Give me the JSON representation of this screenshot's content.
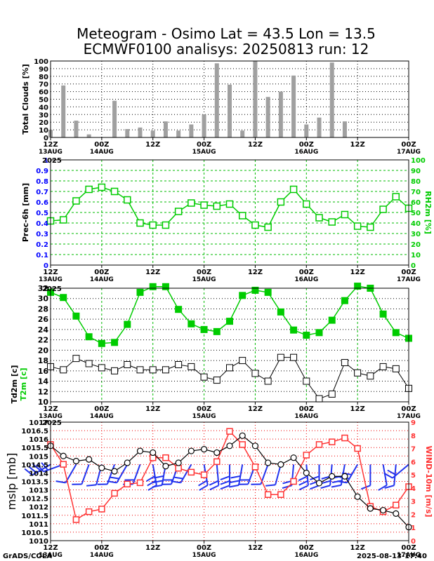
{
  "header": {
    "title_line1": "Meteogram - Osimo Lat = 43.5 Lon = 13.5",
    "title_line2": "ECMWF0100 analisys: 20250813 run: 12"
  },
  "footer": {
    "left": "GrADS/COLA",
    "right": "2025-08-13-17:40"
  },
  "colors": {
    "clouds_bar": "#a0a0a0",
    "precip_axis": "#0000ff",
    "rh": "#00cc00",
    "t2m": "#00cc00",
    "td2m": "#000000",
    "mslp": "#000000",
    "wind_speed": "#ff3333",
    "wind_barbs": "#2233ee",
    "grid_black": "#000000",
    "grid_green": "#00bb00",
    "grid_red": "#ee0000"
  },
  "time_axis": {
    "hours": [
      0,
      12,
      24,
      36,
      48,
      60,
      72,
      84
    ],
    "ticks": [
      {
        "top": "12Z",
        "bottom": "13AUG"
      },
      {
        "top": "00Z",
        "bottom": "14AUG"
      },
      {
        "top": "12Z",
        "bottom": ""
      },
      {
        "top": "00Z",
        "bottom": "15AUG"
      },
      {
        "top": "12Z",
        "bottom": ""
      },
      {
        "top": "00Z",
        "bottom": "16AUG"
      },
      {
        "top": "12Z",
        "bottom": ""
      },
      {
        "top": "00Z",
        "bottom": "17AUG"
      }
    ],
    "year_label": "2025"
  },
  "chart_data": [
    {
      "type": "bar",
      "ylabel": "Total Clouds [%]",
      "ylim": [
        0,
        100
      ],
      "yticks": [
        0,
        10,
        20,
        30,
        40,
        50,
        60,
        70,
        80,
        90,
        100
      ],
      "x_hours": [
        0,
        3,
        6,
        9,
        12,
        15,
        18,
        21,
        24,
        27,
        30,
        33,
        36,
        39,
        42,
        45,
        48,
        51,
        54,
        57,
        60,
        63,
        66,
        69
      ],
      "values": [
        10,
        68,
        22,
        4,
        0,
        48,
        11,
        13,
        9,
        21,
        9,
        17,
        30,
        97,
        69,
        9,
        100,
        53,
        60,
        81,
        17,
        26,
        98,
        21
      ]
    },
    {
      "type": "line",
      "ylabel_left": "Prec-6h [mm]",
      "ylabel_right": "RH2m [%]",
      "ylim_left": [
        0,
        1
      ],
      "yticks_left": [
        "0",
        "0.1",
        "0.2",
        "0.3",
        "0.4",
        "0.5",
        "0.6",
        "0.7",
        "0.8",
        "0.9",
        "1"
      ],
      "ylim_right": [
        0,
        100
      ],
      "yticks_right": [
        "0",
        "10",
        "20",
        "30",
        "40",
        "50",
        "60",
        "70",
        "80",
        "90",
        "100"
      ],
      "series": [
        {
          "name": "RH2m",
          "x_hours": [
            0,
            3,
            6,
            9,
            12,
            15,
            18,
            21,
            24,
            27,
            30,
            33,
            36,
            39,
            42,
            45,
            48,
            51,
            54,
            57,
            60,
            63,
            66,
            69,
            72,
            75,
            78,
            81,
            84
          ],
          "values": [
            42,
            43,
            61,
            72,
            74,
            70,
            62,
            40,
            38,
            38,
            51,
            59,
            57,
            56,
            58,
            47,
            38,
            36,
            60,
            72,
            58,
            45,
            41,
            48,
            37,
            36,
            53,
            65,
            54
          ]
        }
      ]
    },
    {
      "type": "line",
      "ylabel": "Td2m [c]",
      "ylabel2": "T2m [c]",
      "ylim": [
        10,
        32
      ],
      "yticks": [
        10,
        12,
        14,
        16,
        18,
        20,
        22,
        24,
        26,
        28,
        30,
        32
      ],
      "series": [
        {
          "name": "T2m",
          "x_hours": [
            0,
            3,
            6,
            9,
            12,
            15,
            18,
            21,
            24,
            27,
            30,
            33,
            36,
            39,
            42,
            45,
            48,
            51,
            54,
            57,
            60,
            63,
            66,
            69,
            72,
            75,
            78,
            81,
            84
          ],
          "values": [
            31.2,
            30.2,
            26.6,
            22.6,
            21.3,
            21.5,
            25.0,
            31.2,
            32.3,
            32.3,
            27.9,
            25.1,
            24.0,
            23.6,
            25.6,
            30.6,
            31.6,
            31.2,
            27.4,
            23.9,
            22.9,
            23.4,
            25.8,
            29.6,
            32.4,
            32.0,
            27.0,
            23.4,
            22.3
          ]
        },
        {
          "name": "Td2m",
          "x_hours": [
            0,
            3,
            6,
            9,
            12,
            15,
            18,
            21,
            24,
            27,
            30,
            33,
            36,
            39,
            42,
            45,
            48,
            51,
            54,
            57,
            60,
            63,
            66,
            69,
            72,
            75,
            78,
            81,
            84
          ],
          "values": [
            16.8,
            16.2,
            18.4,
            17.4,
            16.6,
            16.0,
            17.2,
            16.2,
            16.2,
            16.2,
            17.2,
            16.8,
            14.8,
            14.2,
            16.6,
            18.0,
            15.5,
            14.0,
            18.6,
            18.6,
            14.0,
            10.6,
            11.5,
            17.6,
            15.6,
            15.0,
            16.8,
            16.4,
            12.6
          ]
        }
      ]
    },
    {
      "type": "line",
      "ylabel_left": "mslp [mb]",
      "ylabel_right": "WIND-10m [m/s]",
      "ylim_left": [
        1010,
        1017
      ],
      "yticks_left": [
        "1010",
        "1010.5",
        "1011",
        "1011.5",
        "1012",
        "1012.5",
        "1013",
        "1013.5",
        "1014",
        "1014.5",
        "1015",
        "1015.5",
        "1016",
        "1016.5",
        "1017"
      ],
      "ylim_right": [
        0,
        9
      ],
      "yticks_right": [
        "0",
        "1",
        "2",
        "3",
        "4",
        "5",
        "6",
        "7",
        "8",
        "9"
      ],
      "series": [
        {
          "name": "mslp",
          "x_hours": [
            0,
            3,
            6,
            9,
            12,
            15,
            18,
            21,
            24,
            27,
            30,
            33,
            36,
            39,
            42,
            45,
            48,
            51,
            54,
            57,
            60,
            63,
            66,
            69,
            72,
            75,
            78,
            81,
            84
          ],
          "values": [
            1015.6,
            1015.0,
            1014.7,
            1014.8,
            1014.3,
            1014.1,
            1014.6,
            1015.3,
            1015.2,
            1014.4,
            1014.6,
            1015.3,
            1015.4,
            1015.2,
            1015.6,
            1016.2,
            1015.6,
            1014.6,
            1014.5,
            1014.9,
            1014.0,
            1013.4,
            1013.8,
            1013.8,
            1012.6,
            1011.9,
            1011.8,
            1011.6,
            1010.8
          ]
        },
        {
          "name": "WIND-10m",
          "x_hours": [
            0,
            3,
            6,
            9,
            12,
            15,
            18,
            21,
            24,
            27,
            30,
            33,
            36,
            39,
            42,
            45,
            48,
            51,
            54,
            57,
            60,
            63,
            66,
            69,
            72,
            75,
            78,
            81,
            84
          ],
          "values": [
            7.3,
            5.8,
            1.6,
            2.2,
            2.4,
            3.6,
            4.3,
            4.4,
            6.3,
            6.3,
            5.5,
            5.2,
            5.0,
            6.0,
            8.3,
            7.3,
            5.6,
            3.5,
            3.5,
            4.5,
            6.5,
            7.3,
            7.5,
            7.8,
            7.0,
            2.6,
            2.2,
            2.7,
            4.1
          ]
        }
      ],
      "wind_barbs": {
        "x_hours": [
          0,
          3,
          6,
          9,
          12,
          15,
          18,
          21,
          24,
          27,
          30,
          33,
          36,
          39,
          42,
          45,
          48,
          51,
          54,
          57,
          60,
          63,
          66,
          69,
          72,
          75,
          78,
          81,
          84
        ],
        "direction_deg": [
          240,
          250,
          210,
          200,
          195,
          200,
          210,
          200,
          170,
          190,
          200,
          210,
          170,
          175,
          180,
          190,
          200,
          200,
          195,
          185,
          175,
          180,
          185,
          190,
          210,
          180,
          170,
          185,
          230
        ]
      }
    }
  ]
}
